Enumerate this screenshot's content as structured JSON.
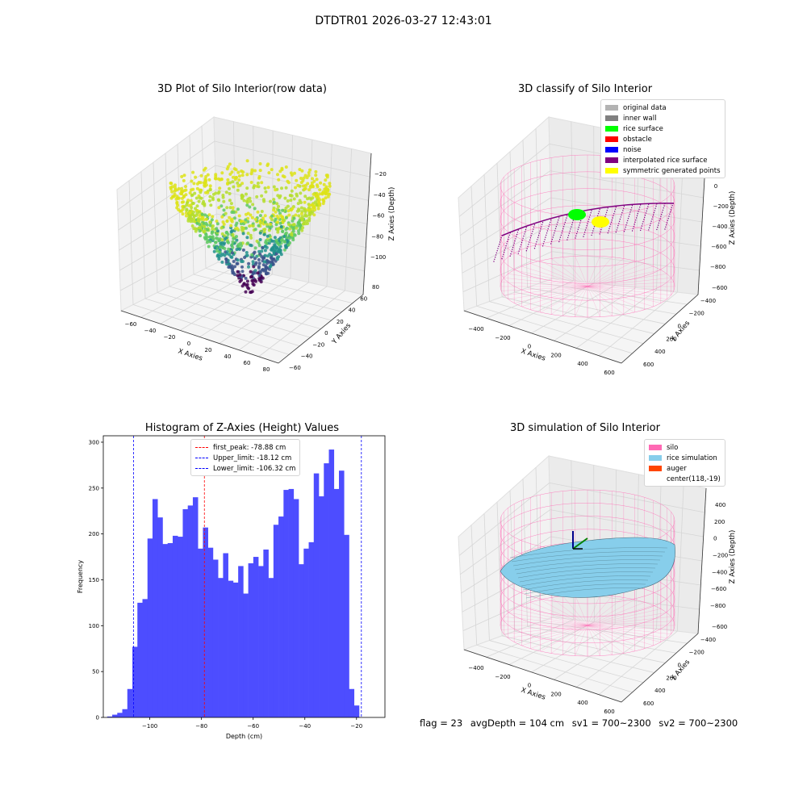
{
  "suptitle": "DTDTR01 2026-03-27 12:43:01",
  "panels": {
    "raw": {
      "title": "3D Plot of Silo Interior(row data)",
      "xlabel": "X Axies",
      "ylabel": "Y Axies",
      "zlabel": "Z Axies (Depth)",
      "xticks": [
        "−60",
        "−40",
        "−20",
        "0",
        "20",
        "40",
        "60",
        "80"
      ],
      "yticks": [
        "−60",
        "−40",
        "−20",
        "0",
        "20",
        "40",
        "60",
        "80"
      ],
      "zticks": [
        "−20",
        "−40",
        "−60",
        "−80",
        "−100"
      ]
    },
    "classify": {
      "title": "3D classify of Silo Interior",
      "xlabel": "X Axies",
      "ylabel": "Y Axies",
      "zlabel": "Z Axies (Depth)",
      "xticks": [
        "−400",
        "−200",
        "0",
        "200",
        "400",
        "600"
      ],
      "yticks": [
        "600",
        "400",
        "200",
        "0",
        "−200",
        "−400",
        "−600"
      ],
      "zticks": [
        "200",
        "0",
        "−200",
        "−400",
        "−600",
        "−800"
      ],
      "legend": [
        {
          "label": "original data",
          "color": "#b3b3b3"
        },
        {
          "label": "inner wall",
          "color": "#808080"
        },
        {
          "label": "rice surface",
          "color": "#00ff00"
        },
        {
          "label": "obstacle",
          "color": "#ff0000"
        },
        {
          "label": "noise",
          "color": "#0000ff"
        },
        {
          "label": "interpolated rice surface",
          "color": "#800080"
        },
        {
          "label": "symmetric generated points",
          "color": "#ffff00"
        }
      ]
    },
    "simulation": {
      "title": "3D simulation of Silo Interior",
      "xlabel": "X Axies",
      "ylabel": "Y Axies",
      "zlabel": "Z Axies (Depth)",
      "xticks": [
        "−400",
        "−200",
        "0",
        "200",
        "400",
        "600"
      ],
      "yticks": [
        "600",
        "400",
        "200",
        "0",
        "−200",
        "−400",
        "−600"
      ],
      "zticks": [
        "400",
        "200",
        "0",
        "−200",
        "−400",
        "−600",
        "−800"
      ],
      "legend": [
        {
          "label": "silo",
          "color": "#ff69b4"
        },
        {
          "label": "rice simulation",
          "color": "#87ceeb"
        },
        {
          "label": "auger",
          "color": "#ff4500"
        },
        {
          "label": "center(118,-19)",
          "color": ""
        }
      ]
    }
  },
  "footer": {
    "flag": "flag = 23",
    "avg": "avgDepth = 104 cm",
    "sv1": "sv1 = 700~2300",
    "sv2": "sv2 = 700~2300"
  },
  "colors": {
    "hist_bar": "#4d4dff",
    "first_peak_line": "#ff0000",
    "limit_line": "#0000ff",
    "silo": "#ff69b4",
    "rice": "#87ceeb"
  },
  "chart_data": {
    "type": "bar",
    "title": "Histogram of Z-Axies (Height) Values",
    "xlabel": "Depth (cm)",
    "ylabel": "Frequency",
    "xlim": [
      -118,
      -9
    ],
    "ylim": [
      0,
      307
    ],
    "xticks": [
      -100,
      -80,
      -60,
      -40,
      -20
    ],
    "yticks": [
      0,
      50,
      100,
      150,
      200,
      250,
      300
    ],
    "tick_labels_x": [
      "−100",
      "−80",
      "−60",
      "−40",
      "−20"
    ],
    "tick_labels_y": [
      "0",
      "50",
      "100",
      "150",
      "200",
      "250",
      "300"
    ],
    "bin_start": -116.5,
    "bin_width": 1.95,
    "values": [
      1,
      3,
      5,
      9,
      31,
      77,
      125,
      129,
      195,
      238,
      218,
      189,
      190,
      198,
      197,
      227,
      231,
      240,
      184,
      207,
      185,
      172,
      152,
      179,
      149,
      147,
      165,
      135,
      168,
      175,
      165,
      183,
      152,
      210,
      219,
      248,
      249,
      238,
      167,
      184,
      191,
      266,
      241,
      277,
      292,
      249,
      269,
      199,
      31,
      13
    ],
    "lines": [
      {
        "label": "first_peak: -78.88 cm",
        "x": -78.88,
        "color": "#ff0000"
      },
      {
        "label": "Upper_limit: -18.12 cm",
        "x": -18.12,
        "color": "#0000ff"
      },
      {
        "label": "Lower_limit: -106.32 cm",
        "x": -106.32,
        "color": "#0000ff"
      }
    ],
    "legend_position": "upper center"
  }
}
